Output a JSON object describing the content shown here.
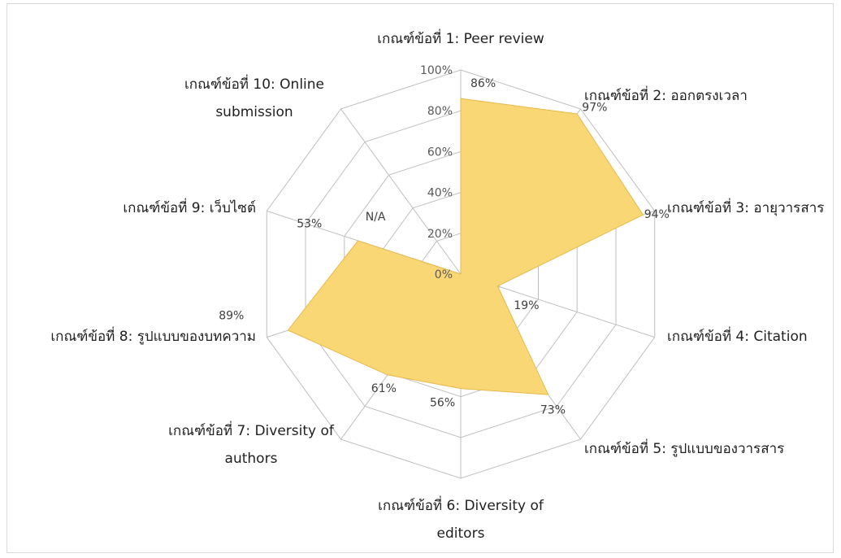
{
  "chart_data": {
    "type": "radar",
    "categories": [
      "เกณฑ์ข้อที่ 1: Peer review",
      "เกณฑ์ข้อที่ 2: ออกตรงเวลา",
      "เกณฑ์ข้อที่ 3: อายุวารสาร",
      "เกณฑ์ข้อที่ 4: Citation",
      "เกณฑ์ข้อที่ 5: รูปแบบของวารสาร",
      "เกณฑ์ข้อที่ 6: Diversity of editors",
      "เกณฑ์ข้อที่ 7: Diversity of authors",
      "เกณฑ์ข้อที่ 8: รูปแบบของบทความ",
      "เกณฑ์ข้อที่ 9: เว็บไซต์",
      "เกณฑ์ข้อที่ 10: Online submission"
    ],
    "values": [
      86,
      97,
      94,
      19,
      73,
      56,
      61,
      89,
      53,
      null
    ],
    "value_labels": [
      "86%",
      "97%",
      "94%",
      "19%",
      "73%",
      "56%",
      "61%",
      "89%",
      "53%",
      "N/A"
    ],
    "ticks": [
      "0%",
      "20%",
      "40%",
      "60%",
      "80%",
      "100%"
    ],
    "rlim": [
      0,
      100
    ],
    "grid": true,
    "fill_color": "#f9d775",
    "grid_color": "#bfbfbf"
  }
}
